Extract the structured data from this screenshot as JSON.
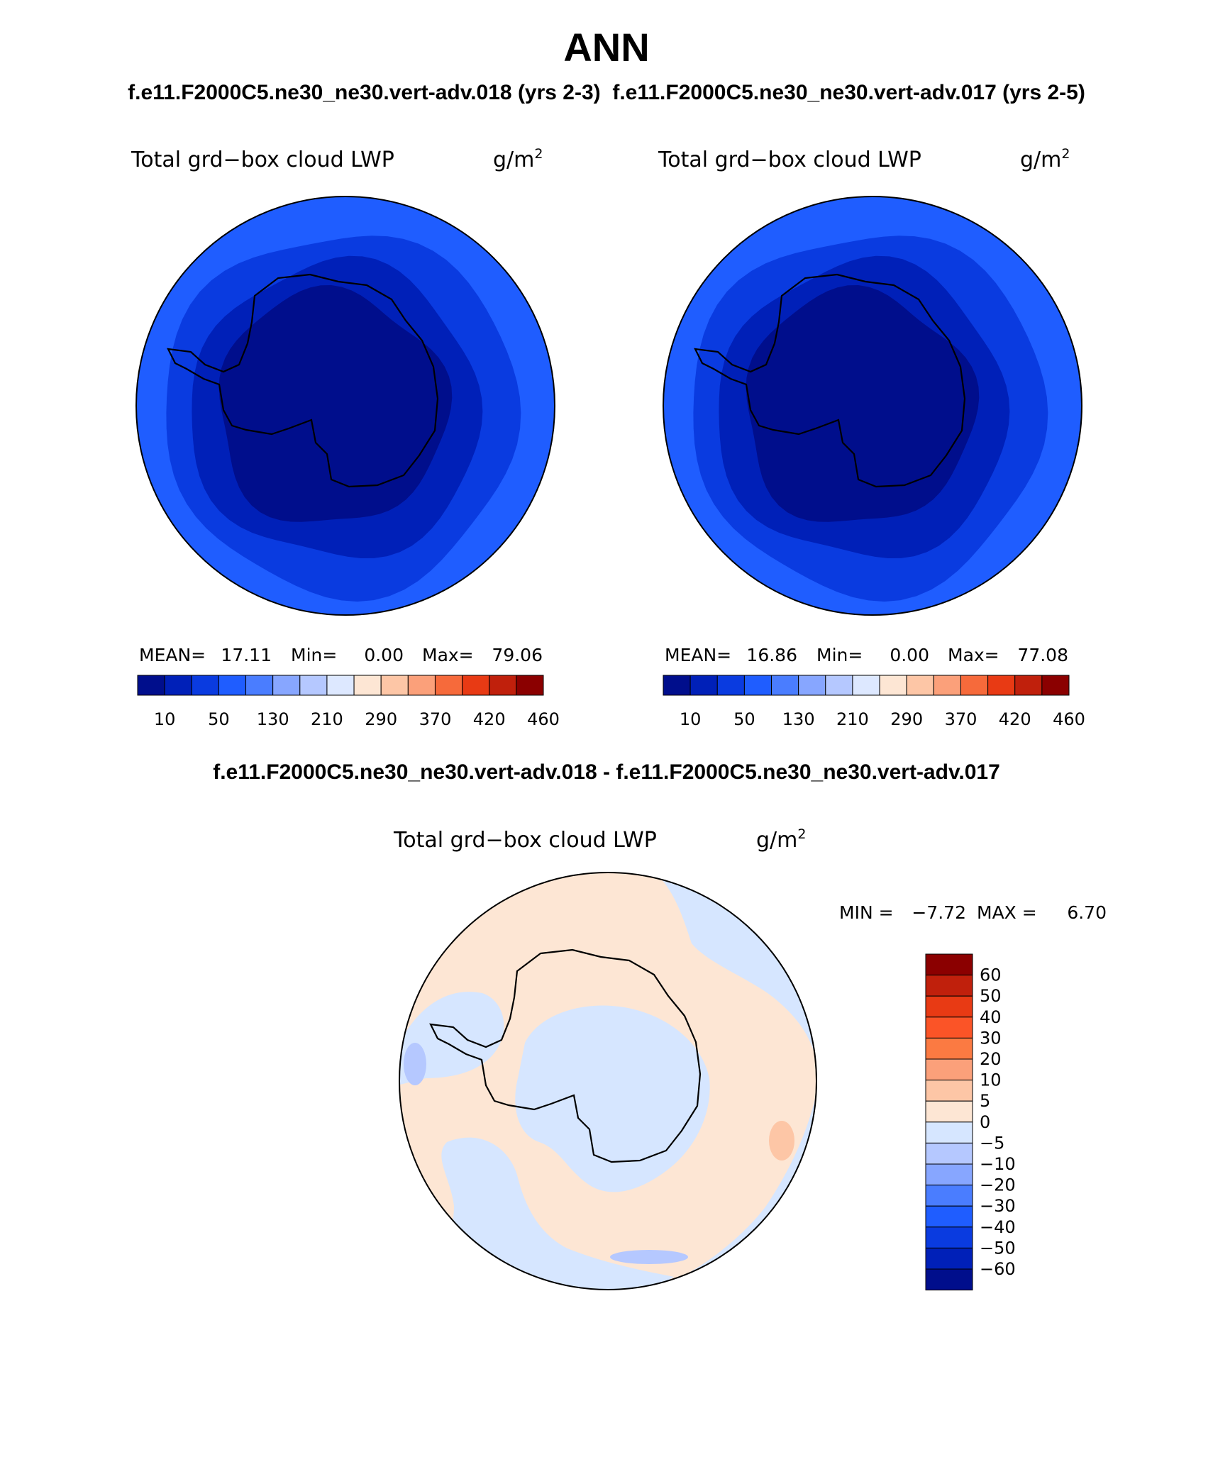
{
  "chart_data": {
    "type": "heatmap",
    "title": "ANN",
    "header_label": "f.e11.F2000C5.ne30_ne30.vert-adv.018 (yrs 2-3)  f.e11.F2000C5.ne30_ne30.vert-adv.017 (yrs 2-5)",
    "diff_header": "f.e11.F2000C5.ne30_ne30.vert-adv.018 - f.e11.F2000C5.ne30_ne30.vert-adv.017",
    "panels": [
      {
        "variable": "Total grd−box cloud LWP",
        "units_base": "g/m",
        "units_exp": "2",
        "mean_label": "MEAN=",
        "mean": "17.11",
        "min_label": "Min=",
        "min": "0.00",
        "max_label": "Max=",
        "max": "79.06",
        "rings": [
          "#1f5dff",
          "#0a3be0",
          "#0020b8",
          "#000e8c"
        ]
      },
      {
        "variable": "Total grd−box cloud LWP",
        "units_base": "g/m",
        "units_exp": "2",
        "mean_label": "MEAN=",
        "mean": "16.86",
        "min_label": "Min=",
        "min": "0.00",
        "max_label": "Max=",
        "max": "77.08",
        "rings": [
          "#1f5dff",
          "#0a3be0",
          "#0020b8",
          "#000e8c"
        ]
      }
    ],
    "colorbar_levels": [
      "10",
      "50",
      "130",
      "210",
      "290",
      "370",
      "420",
      "460"
    ],
    "colorbar_colors": [
      "#000e8c",
      "#0020b8",
      "#0a3be0",
      "#1f5dff",
      "#4a7dff",
      "#87a6ff",
      "#b5c8ff",
      "#dde8ff",
      "#fde6d4",
      "#fdc6a6",
      "#fba07a",
      "#f66a3b",
      "#e83a14",
      "#c0200c",
      "#8b0000"
    ],
    "diff": {
      "variable": "Total grd−box cloud LWP",
      "units_base": "g/m",
      "units_exp": "2",
      "min_label": "MIN =",
      "min": "−7.72",
      "max_label": "MAX =",
      "max": "6.70",
      "levels": [
        "60",
        "50",
        "40",
        "30",
        "20",
        "10",
        "5",
        "0",
        "−5",
        "−10",
        "−20",
        "−30",
        "−40",
        "−50",
        "−60"
      ],
      "colors": [
        "#8b0000",
        "#c0200c",
        "#e83a14",
        "#fb5427",
        "#fb7a42",
        "#fba07a",
        "#fdc6a6",
        "#fde6d4",
        "#d6e6ff",
        "#b5c8ff",
        "#87a6ff",
        "#4a7dff",
        "#1f5dff",
        "#0a3be0",
        "#0020b8",
        "#000e8c"
      ]
    }
  }
}
